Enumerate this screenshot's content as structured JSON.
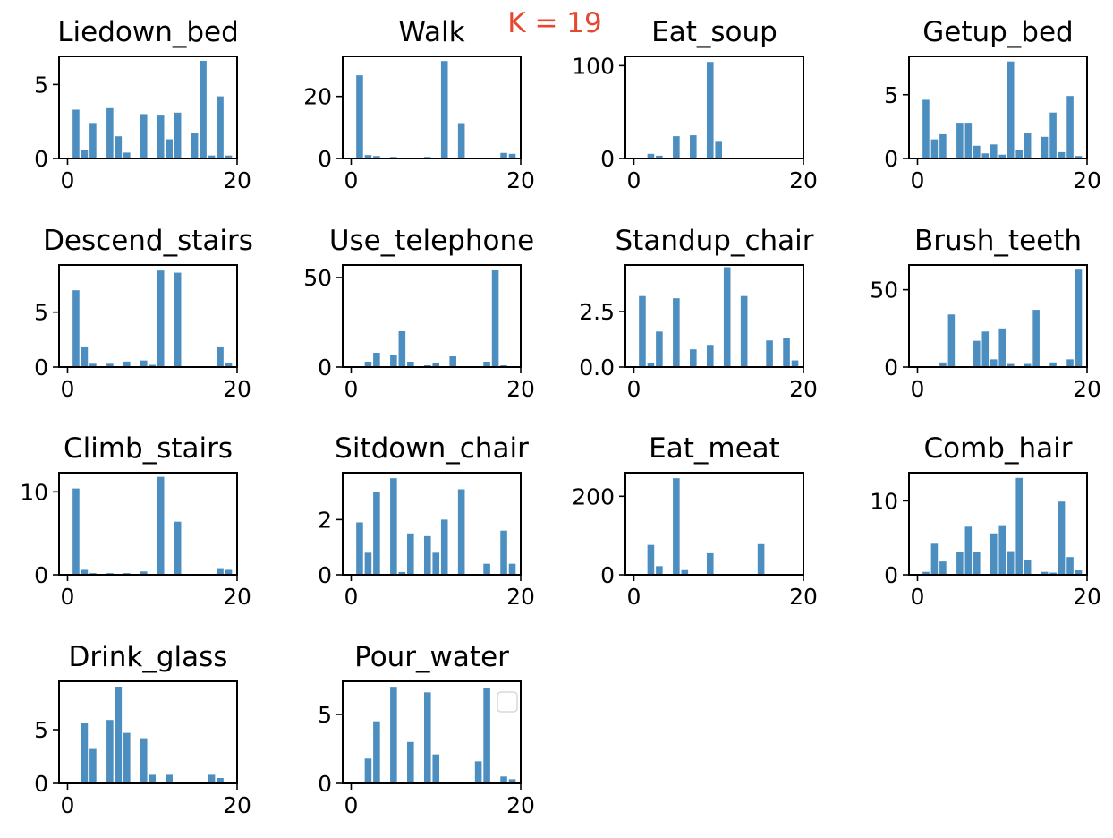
{
  "suptitle": "K = 19",
  "colors": {
    "bar": "#4c8ebf",
    "suptitle": "#e8472f",
    "axes": "#000000",
    "legend_border": "#d9d9d9"
  },
  "chart_data": [
    {
      "type": "bar",
      "title": "Liedown_bed",
      "xlim": [
        -1,
        20
      ],
      "ylim": [
        0,
        6.9
      ],
      "xticks": [
        0,
        20
      ],
      "yticks": [
        0,
        5
      ],
      "yticklabels": [
        "0",
        "5"
      ],
      "x": [
        1,
        2,
        3,
        4,
        5,
        6,
        7,
        8,
        9,
        10,
        11,
        12,
        13,
        14,
        15,
        16,
        17,
        18,
        19
      ],
      "values": [
        3.3,
        0.6,
        2.4,
        0,
        3.4,
        1.5,
        0.4,
        0,
        3.0,
        0,
        2.9,
        1.3,
        3.1,
        0,
        1.7,
        6.6,
        0.2,
        4.2,
        0.2
      ]
    },
    {
      "type": "bar",
      "title": "Walk",
      "xlim": [
        -1,
        20
      ],
      "ylim": [
        0,
        32.9
      ],
      "xticks": [
        0,
        20
      ],
      "yticks": [
        0,
        20
      ],
      "yticklabels": [
        "0",
        "20"
      ],
      "x": [
        1,
        2,
        3,
        4,
        5,
        6,
        7,
        8,
        9,
        10,
        11,
        12,
        13,
        14,
        15,
        16,
        17,
        18,
        19
      ],
      "values": [
        26.8,
        1.1,
        0.8,
        0,
        0.5,
        0,
        0,
        0,
        0.5,
        0,
        31.4,
        0,
        11.4,
        0,
        0,
        0,
        0,
        1.8,
        1.5
      ]
    },
    {
      "type": "bar",
      "title": "Eat_soup",
      "xlim": [
        -1,
        20
      ],
      "ylim": [
        0,
        110
      ],
      "xticks": [
        0,
        20
      ],
      "yticks": [
        0,
        100
      ],
      "yticklabels": [
        "0",
        "100"
      ],
      "x": [
        1,
        2,
        3,
        4,
        5,
        6,
        7,
        8,
        9,
        10,
        11,
        12,
        13,
        14,
        15,
        16,
        17,
        18,
        19
      ],
      "values": [
        0,
        5,
        3,
        0,
        24,
        0,
        25,
        0,
        104,
        18,
        0,
        0,
        0,
        0,
        0,
        0,
        0,
        0,
        0
      ]
    },
    {
      "type": "bar",
      "title": "Getup_bed",
      "xlim": [
        -1,
        20
      ],
      "ylim": [
        0,
        8.0
      ],
      "xticks": [
        0,
        20
      ],
      "yticks": [
        0,
        5
      ],
      "yticklabels": [
        "0",
        "5"
      ],
      "x": [
        1,
        2,
        3,
        4,
        5,
        6,
        7,
        8,
        9,
        10,
        11,
        12,
        13,
        14,
        15,
        16,
        17,
        18,
        19
      ],
      "values": [
        4.6,
        1.5,
        1.9,
        0,
        2.8,
        2.8,
        1.0,
        0.4,
        1.1,
        0.3,
        7.6,
        0.7,
        2.0,
        0,
        1.7,
        3.6,
        0.5,
        4.9,
        0.2
      ]
    },
    {
      "type": "bar",
      "title": "Descend_stairs",
      "xlim": [
        -1,
        20
      ],
      "ylim": [
        0,
        9.3
      ],
      "xticks": [
        0,
        20
      ],
      "yticks": [
        0,
        5
      ],
      "yticklabels": [
        "0",
        "5"
      ],
      "x": [
        1,
        2,
        3,
        4,
        5,
        6,
        7,
        8,
        9,
        10,
        11,
        12,
        13,
        14,
        15,
        16,
        17,
        18,
        19
      ],
      "values": [
        7.0,
        1.8,
        0.3,
        0,
        0.3,
        0,
        0.5,
        0,
        0.6,
        0.2,
        8.8,
        0,
        8.6,
        0,
        0,
        0,
        0,
        1.8,
        0.4
      ]
    },
    {
      "type": "bar",
      "title": "Use_telephone",
      "xlim": [
        -1,
        20
      ],
      "ylim": [
        0,
        57
      ],
      "xticks": [
        0,
        20
      ],
      "yticks": [
        0,
        50
      ],
      "yticklabels": [
        "0",
        "50"
      ],
      "x": [
        1,
        2,
        3,
        4,
        5,
        6,
        7,
        8,
        9,
        10,
        11,
        12,
        13,
        14,
        15,
        16,
        17,
        18,
        19
      ],
      "values": [
        0,
        3,
        8,
        0,
        7,
        20,
        3,
        0,
        1,
        2,
        0,
        6,
        0,
        0,
        0,
        3,
        54,
        1,
        0
      ]
    },
    {
      "type": "bar",
      "title": "Standup_chair",
      "xlim": [
        -1,
        20
      ],
      "ylim": [
        0,
        4.6
      ],
      "xticks": [
        0,
        20
      ],
      "yticks": [
        0,
        2.5
      ],
      "yticklabels": [
        "0.0",
        "2.5"
      ],
      "x": [
        1,
        2,
        3,
        4,
        5,
        6,
        7,
        8,
        9,
        10,
        11,
        12,
        13,
        14,
        15,
        16,
        17,
        18,
        19
      ],
      "values": [
        3.2,
        0.2,
        1.6,
        0,
        3.1,
        0,
        0.8,
        0,
        1.0,
        0,
        4.5,
        0,
        3.2,
        0,
        0,
        1.2,
        0,
        1.3,
        0.3
      ]
    },
    {
      "type": "bar",
      "title": "Brush_teeth",
      "xlim": [
        -1,
        20
      ],
      "ylim": [
        0,
        66
      ],
      "xticks": [
        0,
        20
      ],
      "yticks": [
        0,
        50
      ],
      "yticklabels": [
        "0",
        "50"
      ],
      "x": [
        1,
        2,
        3,
        4,
        5,
        6,
        7,
        8,
        9,
        10,
        11,
        12,
        13,
        14,
        15,
        16,
        17,
        18,
        19
      ],
      "values": [
        0,
        0,
        3,
        34,
        0,
        0,
        17,
        23,
        5,
        25,
        2,
        0,
        2,
        37,
        0,
        3,
        0,
        5,
        63
      ]
    },
    {
      "type": "bar",
      "title": "Climb_stairs",
      "xlim": [
        -1,
        20
      ],
      "ylim": [
        0,
        12.3
      ],
      "xticks": [
        0,
        20
      ],
      "yticks": [
        0,
        10
      ],
      "yticklabels": [
        "0",
        "10"
      ],
      "x": [
        1,
        2,
        3,
        4,
        5,
        6,
        7,
        8,
        9,
        10,
        11,
        12,
        13,
        14,
        15,
        16,
        17,
        18,
        19
      ],
      "values": [
        10.4,
        0.6,
        0.2,
        0,
        0.2,
        0,
        0.2,
        0,
        0.4,
        0,
        11.8,
        0,
        6.4,
        0,
        0,
        0,
        0,
        0.8,
        0.6
      ]
    },
    {
      "type": "bar",
      "title": "Sitdown_chair",
      "xlim": [
        -1,
        20
      ],
      "ylim": [
        0,
        3.7
      ],
      "xticks": [
        0,
        20
      ],
      "yticks": [
        0,
        2
      ],
      "yticklabels": [
        "0",
        "2"
      ],
      "x": [
        1,
        2,
        3,
        4,
        5,
        6,
        7,
        8,
        9,
        10,
        11,
        12,
        13,
        14,
        15,
        16,
        17,
        18,
        19
      ],
      "values": [
        1.9,
        0.8,
        3.0,
        0,
        3.5,
        0.1,
        1.5,
        0,
        1.4,
        0.8,
        2.0,
        0,
        3.1,
        0,
        0,
        0.4,
        0,
        1.6,
        0.4
      ]
    },
    {
      "type": "bar",
      "title": "Eat_meat",
      "xlim": [
        -1,
        20
      ],
      "ylim": [
        0,
        260
      ],
      "xticks": [
        0,
        20
      ],
      "yticks": [
        0,
        200
      ],
      "yticklabels": [
        "0",
        "200"
      ],
      "x": [
        1,
        2,
        3,
        4,
        5,
        6,
        7,
        8,
        9,
        10,
        11,
        12,
        13,
        14,
        15,
        16,
        17,
        18,
        19
      ],
      "values": [
        0,
        76,
        22,
        0,
        246,
        12,
        0,
        0,
        55,
        0,
        0,
        0,
        0,
        0,
        78,
        0,
        0,
        0,
        0
      ]
    },
    {
      "type": "bar",
      "title": "Comb_hair",
      "xlim": [
        -1,
        20
      ],
      "ylim": [
        0,
        13.8
      ],
      "xticks": [
        0,
        20
      ],
      "yticks": [
        0,
        10
      ],
      "yticklabels": [
        "0",
        "10"
      ],
      "x": [
        1,
        2,
        3,
        4,
        5,
        6,
        7,
        8,
        9,
        10,
        11,
        12,
        13,
        14,
        15,
        16,
        17,
        18,
        19
      ],
      "values": [
        0.4,
        4.2,
        1.8,
        0,
        3.1,
        6.5,
        3.1,
        0,
        5.6,
        6.7,
        3.2,
        13.1,
        2.0,
        0,
        0.4,
        0.3,
        9.9,
        2.4,
        0.6
      ]
    },
    {
      "type": "bar",
      "title": "Drink_glass",
      "xlim": [
        -1,
        20
      ],
      "ylim": [
        0,
        9.5
      ],
      "xticks": [
        0,
        20
      ],
      "yticks": [
        0,
        5
      ],
      "yticklabels": [
        "0",
        "5"
      ],
      "x": [
        1,
        2,
        3,
        4,
        5,
        6,
        7,
        8,
        9,
        10,
        11,
        12,
        13,
        14,
        15,
        16,
        17,
        18,
        19
      ],
      "values": [
        0,
        5.6,
        3.2,
        0,
        5.9,
        9.0,
        4.7,
        0,
        4.2,
        0.8,
        0,
        0.8,
        0,
        0,
        0,
        0,
        0.8,
        0.5,
        0.1
      ]
    },
    {
      "type": "bar",
      "title": "Pour_water",
      "xlim": [
        -1,
        20
      ],
      "ylim": [
        0,
        7.4
      ],
      "xticks": [
        0,
        20
      ],
      "yticks": [
        0,
        5
      ],
      "yticklabels": [
        "0",
        "5"
      ],
      "x": [
        1,
        2,
        3,
        4,
        5,
        6,
        7,
        8,
        9,
        10,
        11,
        12,
        13,
        14,
        15,
        16,
        17,
        18,
        19
      ],
      "values": [
        0,
        1.8,
        4.5,
        0,
        7.0,
        0.1,
        3.0,
        0,
        6.6,
        2.1,
        0,
        0,
        0,
        0,
        1.6,
        6.9,
        0,
        0.5,
        0.3
      ],
      "legend": {
        "placement": "upper right",
        "entries": []
      }
    }
  ]
}
